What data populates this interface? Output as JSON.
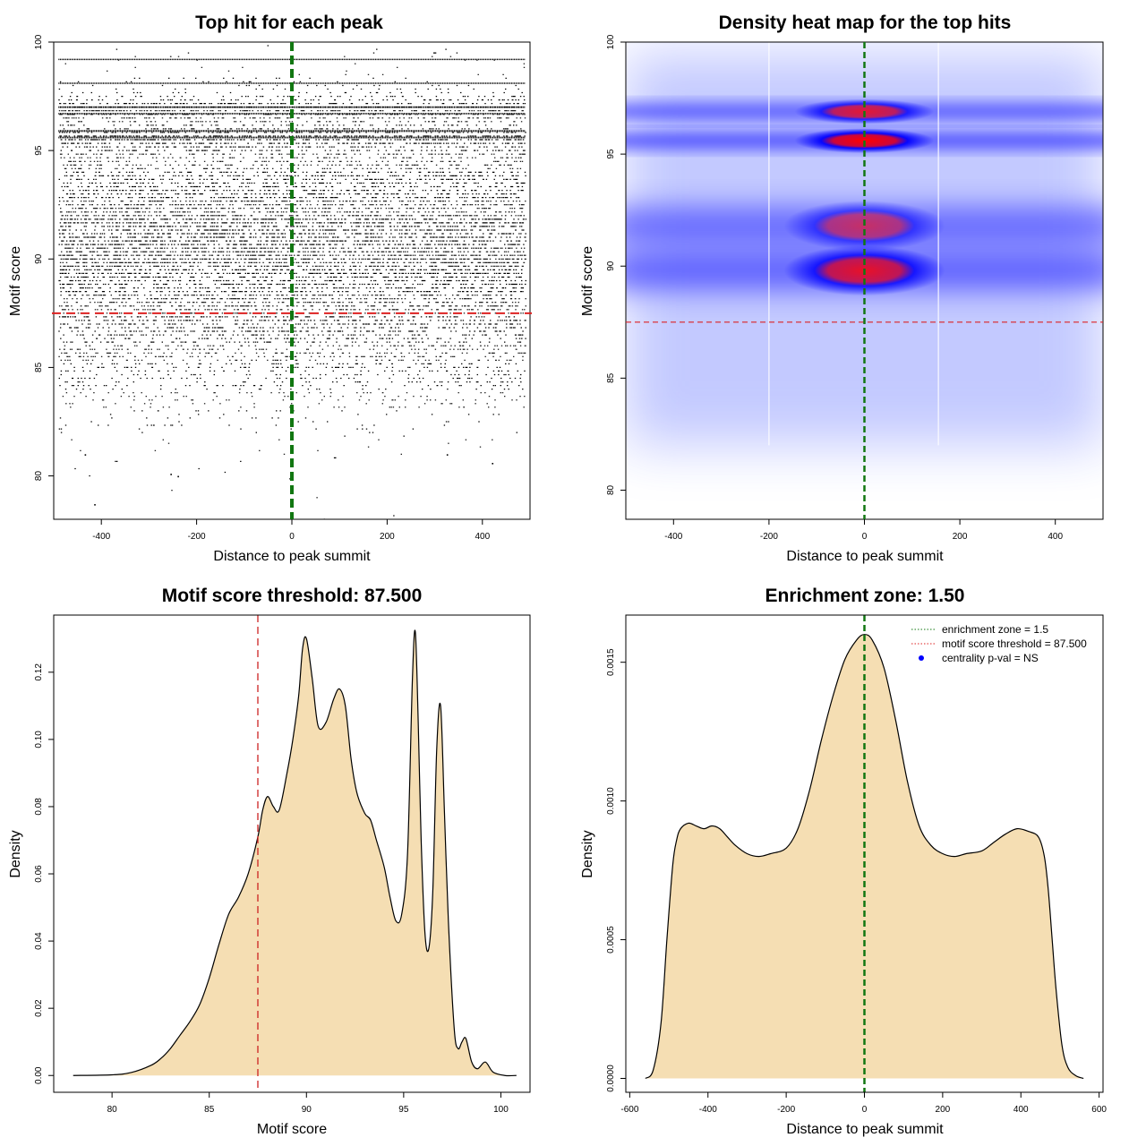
{
  "chart_data": [
    {
      "type": "scatter",
      "title": "Top hit for each peak",
      "xlabel": "Distance to peak summit",
      "ylabel": "Motif score",
      "xlim": [
        -500,
        500
      ],
      "ylim": [
        78,
        100
      ],
      "xticks": [
        -400,
        -200,
        0,
        200,
        400
      ],
      "yticks": [
        80,
        85,
        90,
        95,
        100
      ],
      "xtick_labels": [
        "-400",
        "-200",
        "0",
        "200",
        "400"
      ],
      "ytick_labels": [
        "80",
        "85",
        "90",
        "95",
        "100"
      ],
      "x_range_of_points": [
        -490,
        490
      ],
      "y_range_of_points": [
        78.7,
        100
      ],
      "summary_points": [
        {
          "x": -415,
          "y": 78.7
        },
        {
          "x": -255,
          "y": 80.1
        },
        {
          "x": -240,
          "y": 80.0
        },
        {
          "x": -5,
          "y": 79.9
        },
        {
          "x": 420,
          "y": 80.6
        },
        {
          "x": 325,
          "y": 81.0
        },
        {
          "x": -435,
          "y": 81.0
        }
      ],
      "density_bands": [
        {
          "y": 99.2,
          "weight": 0.5
        },
        {
          "y": 98.1,
          "weight": 0.6
        },
        {
          "y": 97.0,
          "weight": 0.8
        },
        {
          "y": 96.7,
          "weight": 0.7
        },
        {
          "y": 95.9,
          "weight": 0.9
        },
        {
          "y": 95.6,
          "weight": 0.8
        }
      ],
      "hline": {
        "y": 87.5,
        "color": "#dd2222",
        "style": "dashed"
      },
      "vline": {
        "x": 0,
        "color": "#117711",
        "style": "dashed"
      },
      "grid": false,
      "point_color": "#000000"
    },
    {
      "type": "heatmap",
      "title": "Density heat map for the top hits",
      "xlabel": "Distance to peak summit",
      "ylabel": "Motif score",
      "xlim": [
        -500,
        500
      ],
      "ylim": [
        78.7,
        100
      ],
      "xticks": [
        -400,
        -200,
        0,
        200,
        400
      ],
      "yticks": [
        80,
        85,
        90,
        95,
        100
      ],
      "xtick_labels": [
        "-400",
        "-200",
        "0",
        "200",
        "400"
      ],
      "ytick_labels": [
        "80",
        "85",
        "90",
        "95",
        "100"
      ],
      "color_scale": [
        "#ffffff",
        "#0000ff",
        "#ff0000"
      ],
      "hotspots": [
        {
          "x": 0,
          "y": 96.9,
          "intensity": 0.8
        },
        {
          "x": 0,
          "y": 95.6,
          "intensity": 1.0
        },
        {
          "x": 0,
          "y": 91.8,
          "intensity": 0.6
        },
        {
          "x": 0,
          "y": 89.8,
          "intensity": 0.85
        }
      ],
      "bands": [
        {
          "y": 96.9,
          "intensity": 0.55
        },
        {
          "y": 95.6,
          "intensity": 0.6
        },
        {
          "y": 91.8,
          "intensity": 0.5
        },
        {
          "y": 89.8,
          "intensity": 0.55
        }
      ],
      "hline": {
        "y": 87.5,
        "color": "#dd2222",
        "style": "dashed"
      },
      "vline": {
        "x": 0,
        "color": "#117711",
        "style": "dashed"
      },
      "grid": false
    },
    {
      "type": "area",
      "title": "Motif score threshold: 87.500",
      "xlabel": "Motif score",
      "ylabel": "Density",
      "xlim": [
        77,
        101.5
      ],
      "ylim": [
        -0.005,
        0.137
      ],
      "xticks": [
        80,
        85,
        90,
        95,
        100
      ],
      "yticks": [
        0,
        0.02,
        0.04,
        0.06,
        0.08,
        0.1,
        0.12
      ],
      "xtick_labels": [
        "80",
        "85",
        "90",
        "95",
        "100"
      ],
      "ytick_labels": [
        "0.00",
        "0.02",
        "0.04",
        "0.06",
        "0.08",
        "0.10",
        "0.12"
      ],
      "x": [
        78,
        80,
        81,
        82,
        82.5,
        83,
        83.5,
        84,
        84.5,
        85,
        85.5,
        86,
        86.5,
        87,
        87.5,
        87.75,
        88,
        88.3,
        88.6,
        89,
        89.3,
        89.6,
        89.8,
        90,
        90.3,
        90.6,
        91,
        91.4,
        91.7,
        92,
        92.3,
        92.6,
        93,
        93.3,
        93.6,
        94,
        94.3,
        94.6,
        94.9,
        95.2,
        95.45,
        95.6,
        95.75,
        95.9,
        96.1,
        96.3,
        96.5,
        96.7,
        96.9,
        97.1,
        97.3,
        97.6,
        97.8,
        98,
        98.2,
        98.5,
        98.8,
        99.2,
        99.6,
        100.2,
        100.8
      ],
      "y": [
        0,
        0.0002,
        0.0009,
        0.003,
        0.005,
        0.008,
        0.012,
        0.016,
        0.021,
        0.029,
        0.039,
        0.048,
        0.053,
        0.06,
        0.071,
        0.079,
        0.083,
        0.08,
        0.079,
        0.09,
        0.1,
        0.113,
        0.127,
        0.13,
        0.118,
        0.104,
        0.105,
        0.112,
        0.115,
        0.11,
        0.094,
        0.084,
        0.078,
        0.076,
        0.07,
        0.062,
        0.053,
        0.046,
        0.048,
        0.066,
        0.118,
        0.132,
        0.105,
        0.07,
        0.042,
        0.038,
        0.055,
        0.097,
        0.11,
        0.078,
        0.046,
        0.014,
        0.008,
        0.01,
        0.011,
        0.004,
        0.002,
        0.004,
        0.001,
        0,
        0
      ],
      "vline": {
        "x": 87.5,
        "color": "#cc2222",
        "style": "dashed"
      },
      "fill_color": "#f5deb3",
      "line_color": "#000000",
      "grid": false
    },
    {
      "type": "area",
      "title": "Enrichment zone: 1.50",
      "xlabel": "Distance to peak summit",
      "ylabel": "Density",
      "xlim": [
        -610,
        610
      ],
      "ylim": [
        -5e-05,
        0.00167
      ],
      "xticks": [
        -600,
        -400,
        -200,
        0,
        200,
        400,
        600
      ],
      "yticks": [
        0,
        0.0005,
        0.001,
        0.0015
      ],
      "xtick_labels": [
        "-600",
        "-400",
        "-200",
        "0",
        "200",
        "400",
        "600"
      ],
      "ytick_labels": [
        "0.0000",
        "0.0005",
        "0.0010",
        "0.0015"
      ],
      "x": [
        -560,
        -540,
        -520,
        -505,
        -490,
        -480,
        -470,
        -450,
        -430,
        -410,
        -390,
        -370,
        -350,
        -330,
        -300,
        -270,
        -240,
        -200,
        -170,
        -140,
        -110,
        -80,
        -50,
        -20,
        0,
        20,
        50,
        80,
        110,
        140,
        170,
        200,
        230,
        260,
        300,
        330,
        360,
        390,
        420,
        445,
        460,
        470,
        480,
        490,
        505,
        520,
        540,
        560
      ],
      "y": [
        0,
        3e-05,
        0.0002,
        0.0005,
        0.00077,
        0.00086,
        0.0009,
        0.00092,
        0.00091,
        0.0009,
        0.00091,
        0.0009,
        0.00087,
        0.00084,
        0.00081,
        0.0008,
        0.00081,
        0.00083,
        0.0009,
        0.00104,
        0.00122,
        0.00138,
        0.00151,
        0.00158,
        0.0016,
        0.00158,
        0.00148,
        0.00129,
        0.00107,
        0.00091,
        0.00084,
        0.00081,
        0.0008,
        0.00081,
        0.00082,
        0.00085,
        0.00088,
        0.0009,
        0.00089,
        0.00087,
        0.0008,
        0.00068,
        0.0005,
        0.00032,
        0.00012,
        4e-05,
        1e-05,
        0
      ],
      "vline": {
        "x": 0,
        "color": "#117711",
        "style": "dashed"
      },
      "fill_color": "#f5deb3",
      "line_color": "#000000",
      "legend": {
        "placement": "top-right",
        "entries": [
          {
            "label": "enrichment zone = 1.5",
            "color": "#117711",
            "style": "dotted-line"
          },
          {
            "label": "motif score threshold = 87.500",
            "color": "#dd2222",
            "style": "dotted-line"
          },
          {
            "label": "centrality p-val = NS",
            "color": "#0000ff",
            "style": "point"
          }
        ]
      },
      "grid": false
    }
  ]
}
